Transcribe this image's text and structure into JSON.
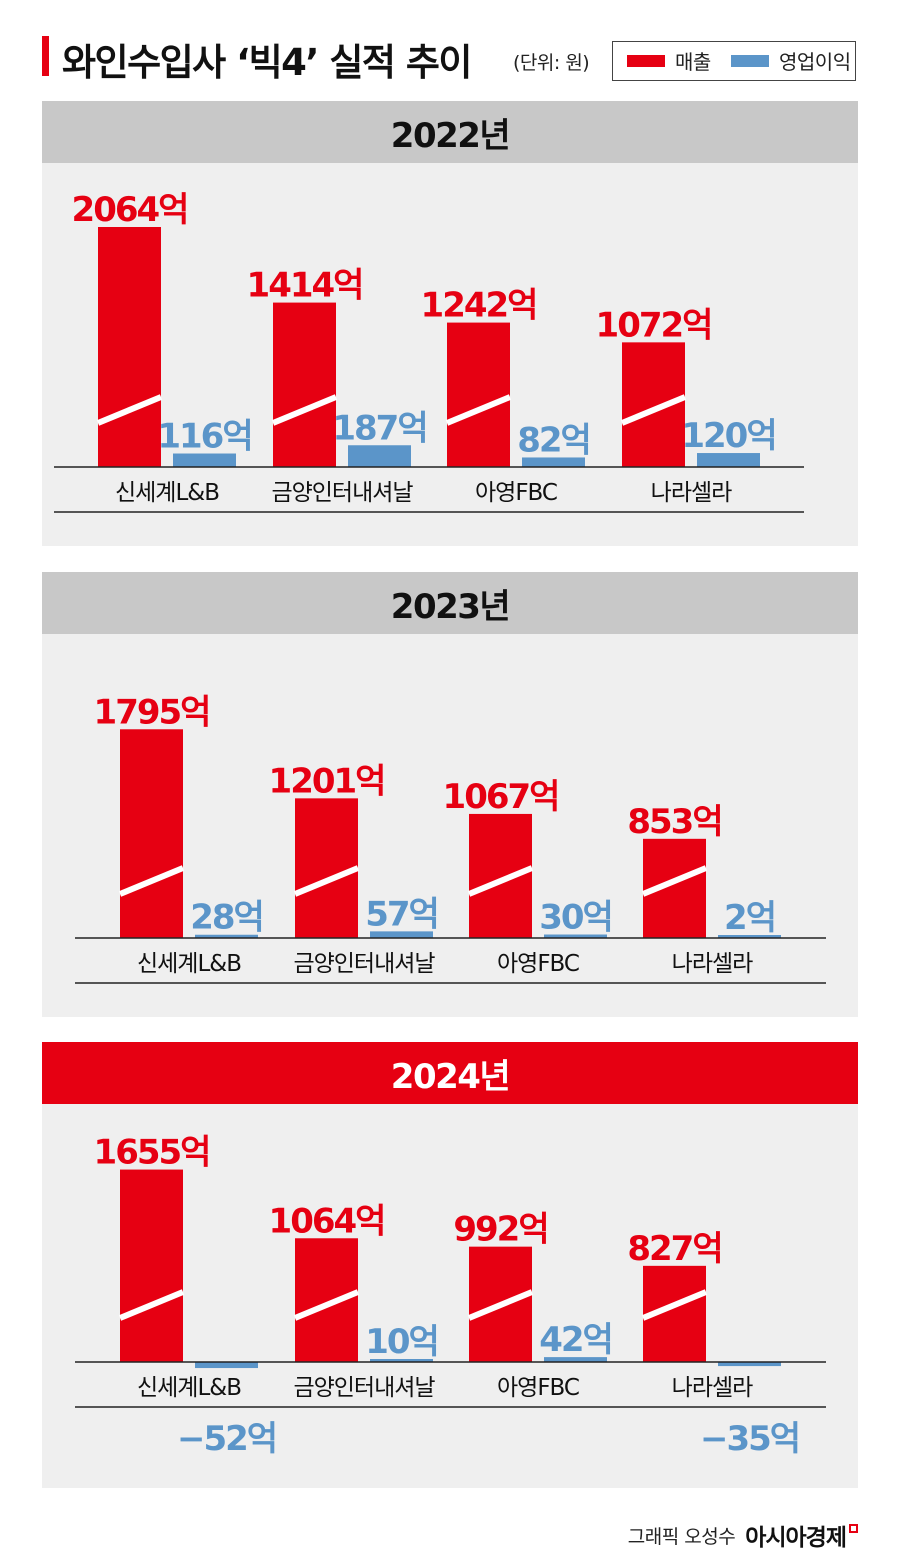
{
  "header": {
    "title": "와인수입사 ‘빅4’ 실적 추이",
    "unit": "(단위: 원)"
  },
  "legend": [
    {
      "label": "매출",
      "color": "#e60012"
    },
    {
      "label": "영업이익",
      "color": "#5b95c9"
    }
  ],
  "colors": {
    "revenue": "#e60012",
    "operating_profit": "#5b95c9",
    "header_gray": "#c8c8c8",
    "header_red": "#e60012",
    "panel_bg": "#efefef"
  },
  "chart_data": [
    {
      "type": "bar",
      "title": "2022년",
      "categories": [
        "신세계L&B",
        "금양인터내셔날",
        "아영FBC",
        "나라셀라"
      ],
      "series": [
        {
          "name": "매출",
          "values": [
            2064,
            1414,
            1242,
            1072
          ],
          "labels": [
            "2064억",
            "1414억",
            "1242억",
            "1072억"
          ]
        },
        {
          "name": "영업이익",
          "values": [
            116,
            187,
            82,
            120
          ],
          "labels": [
            "116억",
            "187억",
            "82억",
            "120억"
          ]
        }
      ],
      "header_style": "gray"
    },
    {
      "type": "bar",
      "title": "2023년",
      "categories": [
        "신세계L&B",
        "금양인터내셔날",
        "아영FBC",
        "나라셀라"
      ],
      "series": [
        {
          "name": "매출",
          "values": [
            1795,
            1201,
            1067,
            853
          ],
          "labels": [
            "1795억",
            "1201억",
            "1067억",
            "853억"
          ]
        },
        {
          "name": "영업이익",
          "values": [
            28,
            57,
            30,
            2
          ],
          "labels": [
            "28억",
            "57억",
            "30억",
            "2억"
          ]
        }
      ],
      "header_style": "gray"
    },
    {
      "type": "bar",
      "title": "2024년",
      "categories": [
        "신세계L&B",
        "금양인터내셔날",
        "아영FBC",
        "나라셀라"
      ],
      "series": [
        {
          "name": "매출",
          "values": [
            1655,
            1064,
            992,
            827
          ],
          "labels": [
            "1655억",
            "1064억",
            "992억",
            "827억"
          ]
        },
        {
          "name": "영업이익",
          "values": [
            -52,
            10,
            42,
            -35
          ],
          "labels": [
            "−52억",
            "10억",
            "42억",
            "−35억"
          ]
        }
      ],
      "header_style": "red"
    }
  ],
  "footer": {
    "credit": "그래픽 오성수",
    "brand": "아시아경제"
  }
}
